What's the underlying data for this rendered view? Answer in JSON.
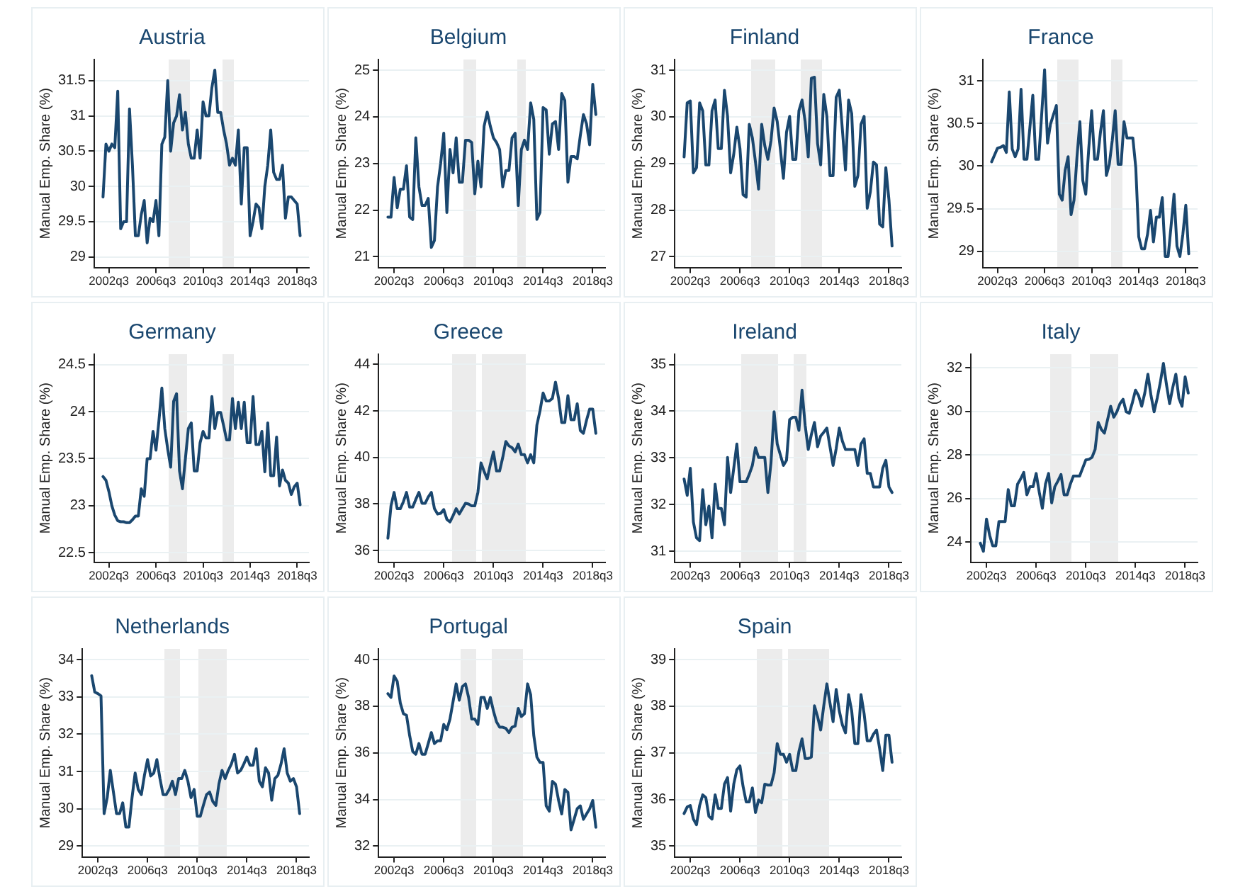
{
  "chart_data": [
    {
      "type": "line",
      "title": "Austria",
      "ylabel": "Manual Emp. Share (%)",
      "grid": "y",
      "ylim": [
        28.85,
        31.8
      ],
      "yticks": [
        29,
        29.5,
        30,
        30.5,
        31,
        31.5
      ],
      "categories": [
        null,
        null,
        "2002q3",
        null,
        null,
        null,
        null,
        null,
        null,
        null,
        null,
        null,
        null,
        null,
        null,
        null,
        null,
        null,
        "2006q3",
        null,
        null,
        null,
        null,
        null,
        null,
        null,
        null,
        null,
        null,
        null,
        null,
        null,
        null,
        null,
        "2010q3",
        null,
        null,
        null,
        null,
        null,
        null,
        null,
        null,
        null,
        null,
        null,
        null,
        null,
        null,
        null,
        "2014q3",
        null,
        null,
        null,
        null,
        null,
        null,
        null,
        null,
        null,
        null,
        null,
        null,
        null,
        null,
        null,
        "2018q3",
        null
      ],
      "series": [
        {
          "color": "#1a476f",
          "values": [
            29.85,
            30.6,
            30.5,
            30.6,
            30.55,
            31.35,
            29.4,
            29.5,
            29.5,
            31.1,
            30.3,
            29.3,
            29.3,
            29.6,
            29.8,
            29.2,
            29.55,
            29.5,
            29.8,
            29.3,
            30.6,
            30.7,
            31.5,
            30.5,
            30.9,
            31.0,
            31.3,
            30.8,
            31.05,
            30.6,
            30.4,
            30.4,
            30.8,
            30.4,
            31.2,
            31.0,
            31.0,
            31.4,
            31.65,
            31.05,
            31.05,
            30.8,
            30.6,
            30.3,
            30.4,
            30.3,
            30.8,
            29.75,
            30.55,
            30.55,
            29.3,
            29.5,
            29.75,
            29.7,
            29.4,
            30.0,
            30.3,
            30.8,
            30.2,
            30.1,
            30.1,
            30.3,
            29.55,
            29.85,
            29.85,
            29.8,
            29.75,
            29.3
          ]
        }
      ]
    },
    {
      "type": "line",
      "title": "Belgium",
      "ylabel": "Manual Emp. Share (%)",
      "grid": "y",
      "ylim": [
        20.77,
        25.23
      ],
      "yticks": [
        21,
        22,
        23,
        24,
        25
      ],
      "categories": [
        null,
        null,
        "2002q3",
        null,
        null,
        null,
        null,
        null,
        null,
        null,
        null,
        null,
        null,
        null,
        null,
        null,
        null,
        null,
        "2006q3",
        null,
        null,
        null,
        null,
        null,
        null,
        null,
        null,
        null,
        null,
        null,
        null,
        null,
        null,
        null,
        "2010q3",
        null,
        null,
        null,
        null,
        null,
        null,
        null,
        null,
        null,
        null,
        null,
        null,
        null,
        null,
        null,
        "2014q3",
        null,
        null,
        null,
        null,
        null,
        null,
        null,
        null,
        null,
        null,
        null,
        null,
        null,
        null,
        null,
        "2018q3",
        null
      ],
      "series": [
        {
          "color": "#1a476f",
          "values": [
            21.85,
            21.85,
            22.7,
            22.05,
            22.45,
            22.45,
            22.95,
            21.85,
            21.8,
            23.55,
            22.5,
            22.1,
            22.1,
            22.25,
            21.2,
            21.35,
            22.5,
            23.0,
            23.65,
            21.95,
            23.3,
            22.8,
            23.55,
            22.6,
            22.6,
            23.5,
            23.5,
            23.45,
            22.35,
            23.05,
            22.5,
            23.8,
            24.1,
            23.8,
            23.55,
            23.45,
            23.3,
            22.5,
            22.85,
            22.85,
            23.55,
            23.65,
            22.1,
            23.3,
            23.5,
            23.3,
            24.3,
            23.95,
            21.8,
            21.95,
            24.2,
            24.15,
            23.2,
            23.85,
            23.9,
            23.3,
            24.5,
            24.35,
            22.6,
            23.15,
            23.15,
            23.1,
            23.6,
            24.05,
            23.85,
            23.4,
            24.7,
            24.05
          ]
        }
      ]
    },
    {
      "type": "line",
      "title": "Finland",
      "ylabel": "Manual Emp. Share (%)",
      "grid": "y",
      "ylim": [
        26.77,
        31.23
      ],
      "yticks": [
        27,
        28,
        29,
        30,
        31
      ],
      "categories": [
        null,
        null,
        "2002q3",
        null,
        null,
        null,
        null,
        null,
        null,
        null,
        null,
        null,
        null,
        null,
        null,
        null,
        null,
        null,
        "2006q3",
        null,
        null,
        null,
        null,
        null,
        null,
        null,
        null,
        null,
        null,
        null,
        null,
        null,
        null,
        null,
        "2010q3",
        null,
        null,
        null,
        null,
        null,
        null,
        null,
        null,
        null,
        null,
        null,
        null,
        null,
        null,
        null,
        "2014q3",
        null,
        null,
        null,
        null,
        null,
        null,
        null,
        null,
        null,
        null,
        null,
        null,
        null,
        null,
        null,
        "2018q3",
        null
      ],
      "series": [
        {
          "color": "#1a476f",
          "values": [
            29.14,
            30.3,
            30.34,
            28.8,
            28.91,
            30.3,
            30.13,
            28.97,
            28.97,
            30.13,
            30.36,
            29.32,
            29.32,
            30.57,
            30.01,
            28.8,
            29.2,
            29.78,
            29.32,
            28.33,
            28.28,
            29.84,
            29.55,
            29.03,
            28.45,
            29.84,
            29.38,
            29.09,
            29.49,
            30.19,
            29.9,
            29.32,
            28.68,
            29.67,
            30.01,
            29.09,
            29.09,
            30.13,
            30.36,
            29.9,
            29.14,
            30.83,
            30.85,
            29.43,
            28.97,
            30.48,
            30.01,
            28.74,
            28.74,
            30.42,
            30.57,
            29.72,
            28.86,
            30.36,
            30.07,
            28.51,
            28.74,
            29.84,
            30.01,
            28.04,
            28.39,
            29.03,
            28.97,
            27.7,
            27.64,
            28.91,
            28.22,
            27.23
          ]
        }
      ]
    },
    {
      "type": "line",
      "title": "France",
      "ylabel": "Manual Emp. Share (%)",
      "grid": "y",
      "ylim": [
        28.81,
        31.25
      ],
      "yticks": [
        29,
        29.5,
        30,
        30.5,
        31
      ],
      "categories": [
        null,
        null,
        "2002q3",
        null,
        null,
        null,
        null,
        null,
        null,
        null,
        null,
        null,
        null,
        null,
        null,
        null,
        null,
        null,
        "2006q3",
        null,
        null,
        null,
        null,
        null,
        null,
        null,
        null,
        null,
        null,
        null,
        null,
        null,
        null,
        null,
        "2010q3",
        null,
        null,
        null,
        null,
        null,
        null,
        null,
        null,
        null,
        null,
        null,
        null,
        null,
        null,
        null,
        "2014q3",
        null,
        null,
        null,
        null,
        null,
        null,
        null,
        null,
        null,
        null,
        null,
        null,
        null,
        null,
        null,
        "2018q3",
        null
      ],
      "series": [
        {
          "color": "#1a476f",
          "values": [
            30.05,
            30.13,
            30.21,
            30.22,
            30.24,
            30.16,
            30.87,
            30.2,
            30.11,
            30.2,
            30.9,
            30.08,
            30.08,
            30.45,
            30.83,
            30.08,
            30.08,
            30.6,
            31.13,
            30.27,
            30.49,
            30.6,
            30.71,
            29.67,
            29.6,
            29.95,
            30.11,
            29.43,
            29.6,
            30.1,
            30.52,
            29.83,
            29.67,
            30.2,
            30.65,
            30.08,
            30.08,
            30.4,
            30.65,
            29.89,
            30.02,
            30.3,
            30.65,
            30.02,
            30.02,
            30.52,
            30.33,
            30.33,
            30.33,
            29.98,
            29.17,
            29.03,
            29.03,
            29.2,
            29.48,
            29.11,
            29.4,
            29.4,
            29.63,
            28.94,
            28.94,
            29.3,
            29.67,
            29.06,
            28.94,
            29.2,
            29.54,
            28.97
          ]
        }
      ]
    },
    {
      "type": "line",
      "title": "Germany",
      "ylabel": "Manual Emp. Share (%)",
      "grid": "y",
      "ylim": [
        22.4,
        24.61
      ],
      "yticks": [
        22.5,
        23,
        23.5,
        24,
        24.5
      ],
      "categories": [
        null,
        null,
        "2002q3",
        null,
        null,
        null,
        null,
        null,
        null,
        null,
        null,
        null,
        null,
        null,
        null,
        null,
        null,
        null,
        "2006q3",
        null,
        null,
        null,
        null,
        null,
        null,
        null,
        null,
        null,
        null,
        null,
        null,
        null,
        null,
        null,
        "2010q3",
        null,
        null,
        null,
        null,
        null,
        null,
        null,
        null,
        null,
        null,
        null,
        null,
        null,
        null,
        null,
        "2014q3",
        null,
        null,
        null,
        null,
        null,
        null,
        null,
        null,
        null,
        null,
        null,
        null,
        null,
        null,
        null,
        "2018q3",
        null
      ],
      "series": [
        {
          "color": "#1a476f",
          "values": [
            23.31,
            23.27,
            23.15,
            23.0,
            22.9,
            22.84,
            22.83,
            22.83,
            22.82,
            22.82,
            22.85,
            22.89,
            22.89,
            23.18,
            23.1,
            23.5,
            23.5,
            23.79,
            23.59,
            23.9,
            24.25,
            23.82,
            23.6,
            23.41,
            24.11,
            24.19,
            23.37,
            23.18,
            23.5,
            23.82,
            23.88,
            23.37,
            23.37,
            23.67,
            23.79,
            23.72,
            23.72,
            24.16,
            23.82,
            23.99,
            23.99,
            23.85,
            23.7,
            23.7,
            24.14,
            23.82,
            24.1,
            23.82,
            24.1,
            23.67,
            23.67,
            24.16,
            23.65,
            23.65,
            23.79,
            23.36,
            23.88,
            23.32,
            23.32,
            23.73,
            23.21,
            23.38,
            23.27,
            23.24,
            23.12,
            23.2,
            23.24,
            23.01
          ]
        }
      ]
    },
    {
      "type": "line",
      "title": "Greece",
      "ylabel": "Manual Emp. Share (%)",
      "grid": "y",
      "ylim": [
        35.5,
        44.44
      ],
      "yticks": [
        36,
        38,
        40,
        42,
        44
      ],
      "categories": [
        null,
        null,
        "2002q3",
        null,
        null,
        null,
        null,
        null,
        null,
        null,
        null,
        null,
        null,
        null,
        null,
        null,
        null,
        null,
        "2006q3",
        null,
        null,
        null,
        null,
        null,
        null,
        null,
        null,
        null,
        null,
        null,
        null,
        null,
        null,
        null,
        "2010q3",
        null,
        null,
        null,
        null,
        null,
        null,
        null,
        null,
        null,
        null,
        null,
        null,
        null,
        null,
        null,
        "2014q3",
        null,
        null,
        null,
        null,
        null,
        null,
        null,
        null,
        null,
        null,
        null,
        null,
        null,
        null,
        null,
        "2018q3",
        null
      ],
      "series": [
        {
          "color": "#1a476f",
          "values": [
            36.53,
            37.92,
            38.5,
            37.8,
            37.8,
            38.1,
            38.5,
            37.87,
            37.87,
            38.2,
            38.5,
            38.03,
            38.03,
            38.3,
            38.5,
            37.8,
            37.57,
            37.6,
            37.76,
            37.34,
            37.23,
            37.5,
            37.8,
            37.57,
            37.8,
            38.03,
            38.0,
            37.92,
            37.92,
            38.5,
            39.77,
            39.4,
            39.08,
            39.7,
            40.24,
            39.42,
            39.42,
            40.0,
            40.69,
            40.5,
            40.42,
            40.24,
            40.58,
            40.12,
            40.12,
            39.77,
            40.12,
            39.77,
            41.39,
            42.0,
            42.77,
            42.43,
            42.43,
            42.54,
            43.24,
            42.54,
            41.5,
            41.5,
            42.66,
            41.62,
            41.62,
            42.31,
            41.16,
            41.04,
            41.6,
            42.08,
            42.08,
            41.04
          ]
        }
      ]
    },
    {
      "type": "line",
      "title": "Ireland",
      "ylabel": "Manual Emp. Share (%)",
      "grid": "y",
      "ylim": [
        30.77,
        35.22
      ],
      "yticks": [
        31,
        32,
        33,
        34,
        35
      ],
      "categories": [
        null,
        null,
        "2002q3",
        null,
        null,
        null,
        null,
        null,
        null,
        null,
        null,
        null,
        null,
        null,
        null,
        null,
        null,
        null,
        "2006q3",
        null,
        null,
        null,
        null,
        null,
        null,
        null,
        null,
        null,
        null,
        null,
        null,
        null,
        null,
        null,
        "2010q3",
        null,
        null,
        null,
        null,
        null,
        null,
        null,
        null,
        null,
        null,
        null,
        null,
        null,
        null,
        null,
        "2014q3",
        null,
        null,
        null,
        null,
        null,
        null,
        null,
        null,
        null,
        null,
        null,
        null,
        null,
        null,
        null,
        "2018q3",
        null
      ],
      "series": [
        {
          "color": "#1a476f",
          "values": [
            32.55,
            32.2,
            32.78,
            31.63,
            31.29,
            31.23,
            32.32,
            31.57,
            31.97,
            31.29,
            32.44,
            31.92,
            31.92,
            31.57,
            33.01,
            32.26,
            32.78,
            33.3,
            32.49,
            32.49,
            32.49,
            32.65,
            32.84,
            33.22,
            33.01,
            33.01,
            33.01,
            32.26,
            32.9,
            33.99,
            33.3,
            33.07,
            32.84,
            32.95,
            33.82,
            33.87,
            33.87,
            33.59,
            34.45,
            33.7,
            33.18,
            33.5,
            33.76,
            33.24,
            33.47,
            33.55,
            33.64,
            33.24,
            32.84,
            33.2,
            33.64,
            33.36,
            33.18,
            33.18,
            33.18,
            33.18,
            32.84,
            33.3,
            33.41,
            32.67,
            32.67,
            32.38,
            32.38,
            32.38,
            32.78,
            32.95,
            32.38,
            32.26
          ]
        }
      ]
    },
    {
      "type": "line",
      "title": "Italy",
      "ylabel": "Manual Emp. Share (%)",
      "grid": "y",
      "ylim": [
        23.08,
        32.62
      ],
      "yticks": [
        24,
        26,
        28,
        30,
        32
      ],
      "categories": [
        null,
        null,
        "2002q3",
        null,
        null,
        null,
        null,
        null,
        null,
        null,
        null,
        null,
        null,
        null,
        null,
        null,
        null,
        null,
        "2006q3",
        null,
        null,
        null,
        null,
        null,
        null,
        null,
        null,
        null,
        null,
        null,
        null,
        null,
        null,
        null,
        "2010q3",
        null,
        null,
        null,
        null,
        null,
        null,
        null,
        null,
        null,
        null,
        null,
        null,
        null,
        null,
        null,
        "2014q3",
        null,
        null,
        null,
        null,
        null,
        null,
        null,
        null,
        null,
        null,
        null,
        null,
        null,
        null,
        null,
        "2018q3",
        null
      ],
      "series": [
        {
          "color": "#1a476f",
          "values": [
            23.95,
            23.58,
            25.06,
            24.32,
            23.83,
            23.83,
            24.94,
            24.94,
            24.94,
            26.41,
            25.67,
            25.67,
            26.66,
            26.9,
            27.2,
            26.17,
            26.54,
            26.54,
            27.15,
            26.29,
            25.55,
            26.66,
            27.15,
            25.8,
            26.54,
            26.8,
            27.1,
            26.17,
            26.17,
            26.66,
            27.03,
            27.03,
            27.03,
            27.4,
            27.77,
            27.8,
            27.89,
            28.26,
            29.49,
            29.17,
            29.0,
            29.61,
            30.23,
            29.73,
            29.98,
            30.35,
            30.55,
            29.98,
            29.91,
            30.4,
            30.97,
            30.72,
            30.23,
            30.84,
            31.7,
            30.72,
            29.98,
            30.6,
            31.33,
            32.2,
            31.21,
            30.35,
            31.09,
            31.7,
            30.6,
            30.23,
            31.58,
            30.84
          ]
        }
      ]
    },
    {
      "type": "line",
      "title": "Netherlands",
      "ylabel": "Manual Emp. Share (%)",
      "grid": "y",
      "ylim": [
        28.71,
        34.29
      ],
      "yticks": [
        29,
        30,
        31,
        32,
        33,
        34
      ],
      "categories": [
        null,
        null,
        "2002q3",
        null,
        null,
        null,
        null,
        null,
        null,
        null,
        null,
        null,
        null,
        null,
        null,
        null,
        null,
        null,
        "2006q3",
        null,
        null,
        null,
        null,
        null,
        null,
        null,
        null,
        null,
        null,
        null,
        null,
        null,
        null,
        null,
        "2010q3",
        null,
        null,
        null,
        null,
        null,
        null,
        null,
        null,
        null,
        null,
        null,
        null,
        null,
        null,
        null,
        "2014q3",
        null,
        null,
        null,
        null,
        null,
        null,
        null,
        null,
        null,
        null,
        null,
        null,
        null,
        null,
        null,
        "2018q3",
        null
      ],
      "series": [
        {
          "color": "#1a476f",
          "values": [
            33.57,
            33.13,
            33.09,
            33.03,
            29.87,
            30.3,
            31.03,
            30.45,
            29.87,
            29.87,
            30.16,
            29.51,
            29.51,
            30.3,
            30.96,
            30.52,
            30.38,
            30.9,
            31.32,
            30.88,
            30.96,
            31.32,
            30.81,
            30.38,
            30.38,
            30.52,
            30.74,
            30.38,
            30.81,
            30.81,
            31.03,
            30.74,
            30.3,
            30.52,
            29.8,
            29.8,
            30.1,
            30.38,
            30.45,
            30.2,
            30.09,
            30.67,
            31.03,
            30.81,
            31.03,
            31.2,
            31.46,
            30.96,
            31.03,
            31.2,
            31.39,
            31.17,
            31.17,
            31.61,
            30.74,
            30.59,
            31.1,
            30.96,
            30.23,
            30.81,
            30.9,
            31.2,
            31.61,
            30.96,
            30.74,
            30.81,
            30.59,
            29.87
          ]
        }
      ]
    },
    {
      "type": "line",
      "title": "Portugal",
      "ylabel": "Manual Emp. Share (%)",
      "grid": "y",
      "ylim": [
        31.54,
        40.46
      ],
      "yticks": [
        32,
        34,
        36,
        38,
        40
      ],
      "categories": [
        null,
        null,
        "2002q3",
        null,
        null,
        null,
        null,
        null,
        null,
        null,
        null,
        null,
        null,
        null,
        null,
        null,
        null,
        null,
        "2006q3",
        null,
        null,
        null,
        null,
        null,
        null,
        null,
        null,
        null,
        null,
        null,
        null,
        null,
        null,
        null,
        "2010q3",
        null,
        null,
        null,
        null,
        null,
        null,
        null,
        null,
        null,
        null,
        null,
        null,
        null,
        null,
        null,
        "2014q3",
        null,
        null,
        null,
        null,
        null,
        null,
        null,
        null,
        null,
        null,
        null,
        null,
        null,
        null,
        null,
        "2018q3",
        null
      ],
      "series": [
        {
          "color": "#1a476f",
          "values": [
            38.54,
            38.38,
            39.3,
            39.07,
            38.14,
            37.68,
            37.61,
            36.75,
            36.06,
            35.94,
            36.4,
            35.94,
            35.94,
            36.4,
            36.87,
            36.4,
            36.52,
            36.52,
            37.22,
            36.99,
            37.45,
            38.2,
            38.96,
            38.26,
            38.84,
            38.96,
            38.38,
            37.45,
            37.45,
            37.22,
            38.38,
            38.38,
            37.91,
            38.38,
            37.8,
            37.33,
            37.1,
            37.1,
            37.05,
            36.87,
            37.1,
            37.15,
            37.91,
            37.56,
            37.68,
            38.96,
            38.49,
            36.75,
            35.82,
            35.59,
            35.59,
            33.73,
            33.5,
            34.78,
            34.66,
            33.96,
            33.38,
            34.43,
            34.31,
            32.7,
            33.15,
            33.61,
            33.73,
            33.15,
            33.38,
            33.6,
            33.96,
            32.81
          ]
        }
      ]
    },
    {
      "type": "line",
      "title": "Spain",
      "ylabel": "Manual Emp. Share (%)",
      "grid": "y",
      "ylim": [
        34.77,
        39.23
      ],
      "yticks": [
        35,
        36,
        37,
        38,
        39
      ],
      "categories": [
        null,
        null,
        "2002q3",
        null,
        null,
        null,
        null,
        null,
        null,
        null,
        null,
        null,
        null,
        null,
        null,
        null,
        null,
        null,
        "2006q3",
        null,
        null,
        null,
        null,
        null,
        null,
        null,
        null,
        null,
        null,
        null,
        null,
        null,
        null,
        null,
        "2010q3",
        null,
        null,
        null,
        null,
        null,
        null,
        null,
        null,
        null,
        null,
        null,
        null,
        null,
        null,
        null,
        "2014q3",
        null,
        null,
        null,
        null,
        null,
        null,
        null,
        null,
        null,
        null,
        null,
        null,
        null,
        null,
        null,
        "2018q3",
        null
      ],
      "series": [
        {
          "color": "#1a476f",
          "values": [
            35.7,
            35.84,
            35.87,
            35.58,
            35.46,
            35.87,
            36.1,
            36.04,
            35.64,
            35.58,
            36.1,
            35.81,
            35.81,
            36.33,
            36.47,
            35.75,
            36.33,
            36.64,
            36.72,
            36.28,
            35.95,
            35.95,
            36.25,
            35.72,
            35.99,
            35.93,
            36.33,
            36.31,
            36.31,
            36.57,
            37.2,
            36.97,
            36.97,
            36.8,
            36.97,
            36.62,
            36.62,
            37.03,
            37.3,
            36.88,
            36.88,
            36.91,
            38.01,
            37.78,
            37.49,
            38.01,
            38.48,
            38.07,
            37.67,
            38.36,
            37.9,
            37.6,
            37.43,
            38.25,
            37.9,
            37.2,
            37.2,
            38.25,
            37.84,
            37.26,
            37.26,
            37.4,
            37.49,
            37.09,
            36.62,
            37.38,
            37.38,
            36.8
          ]
        }
      ]
    }
  ]
}
